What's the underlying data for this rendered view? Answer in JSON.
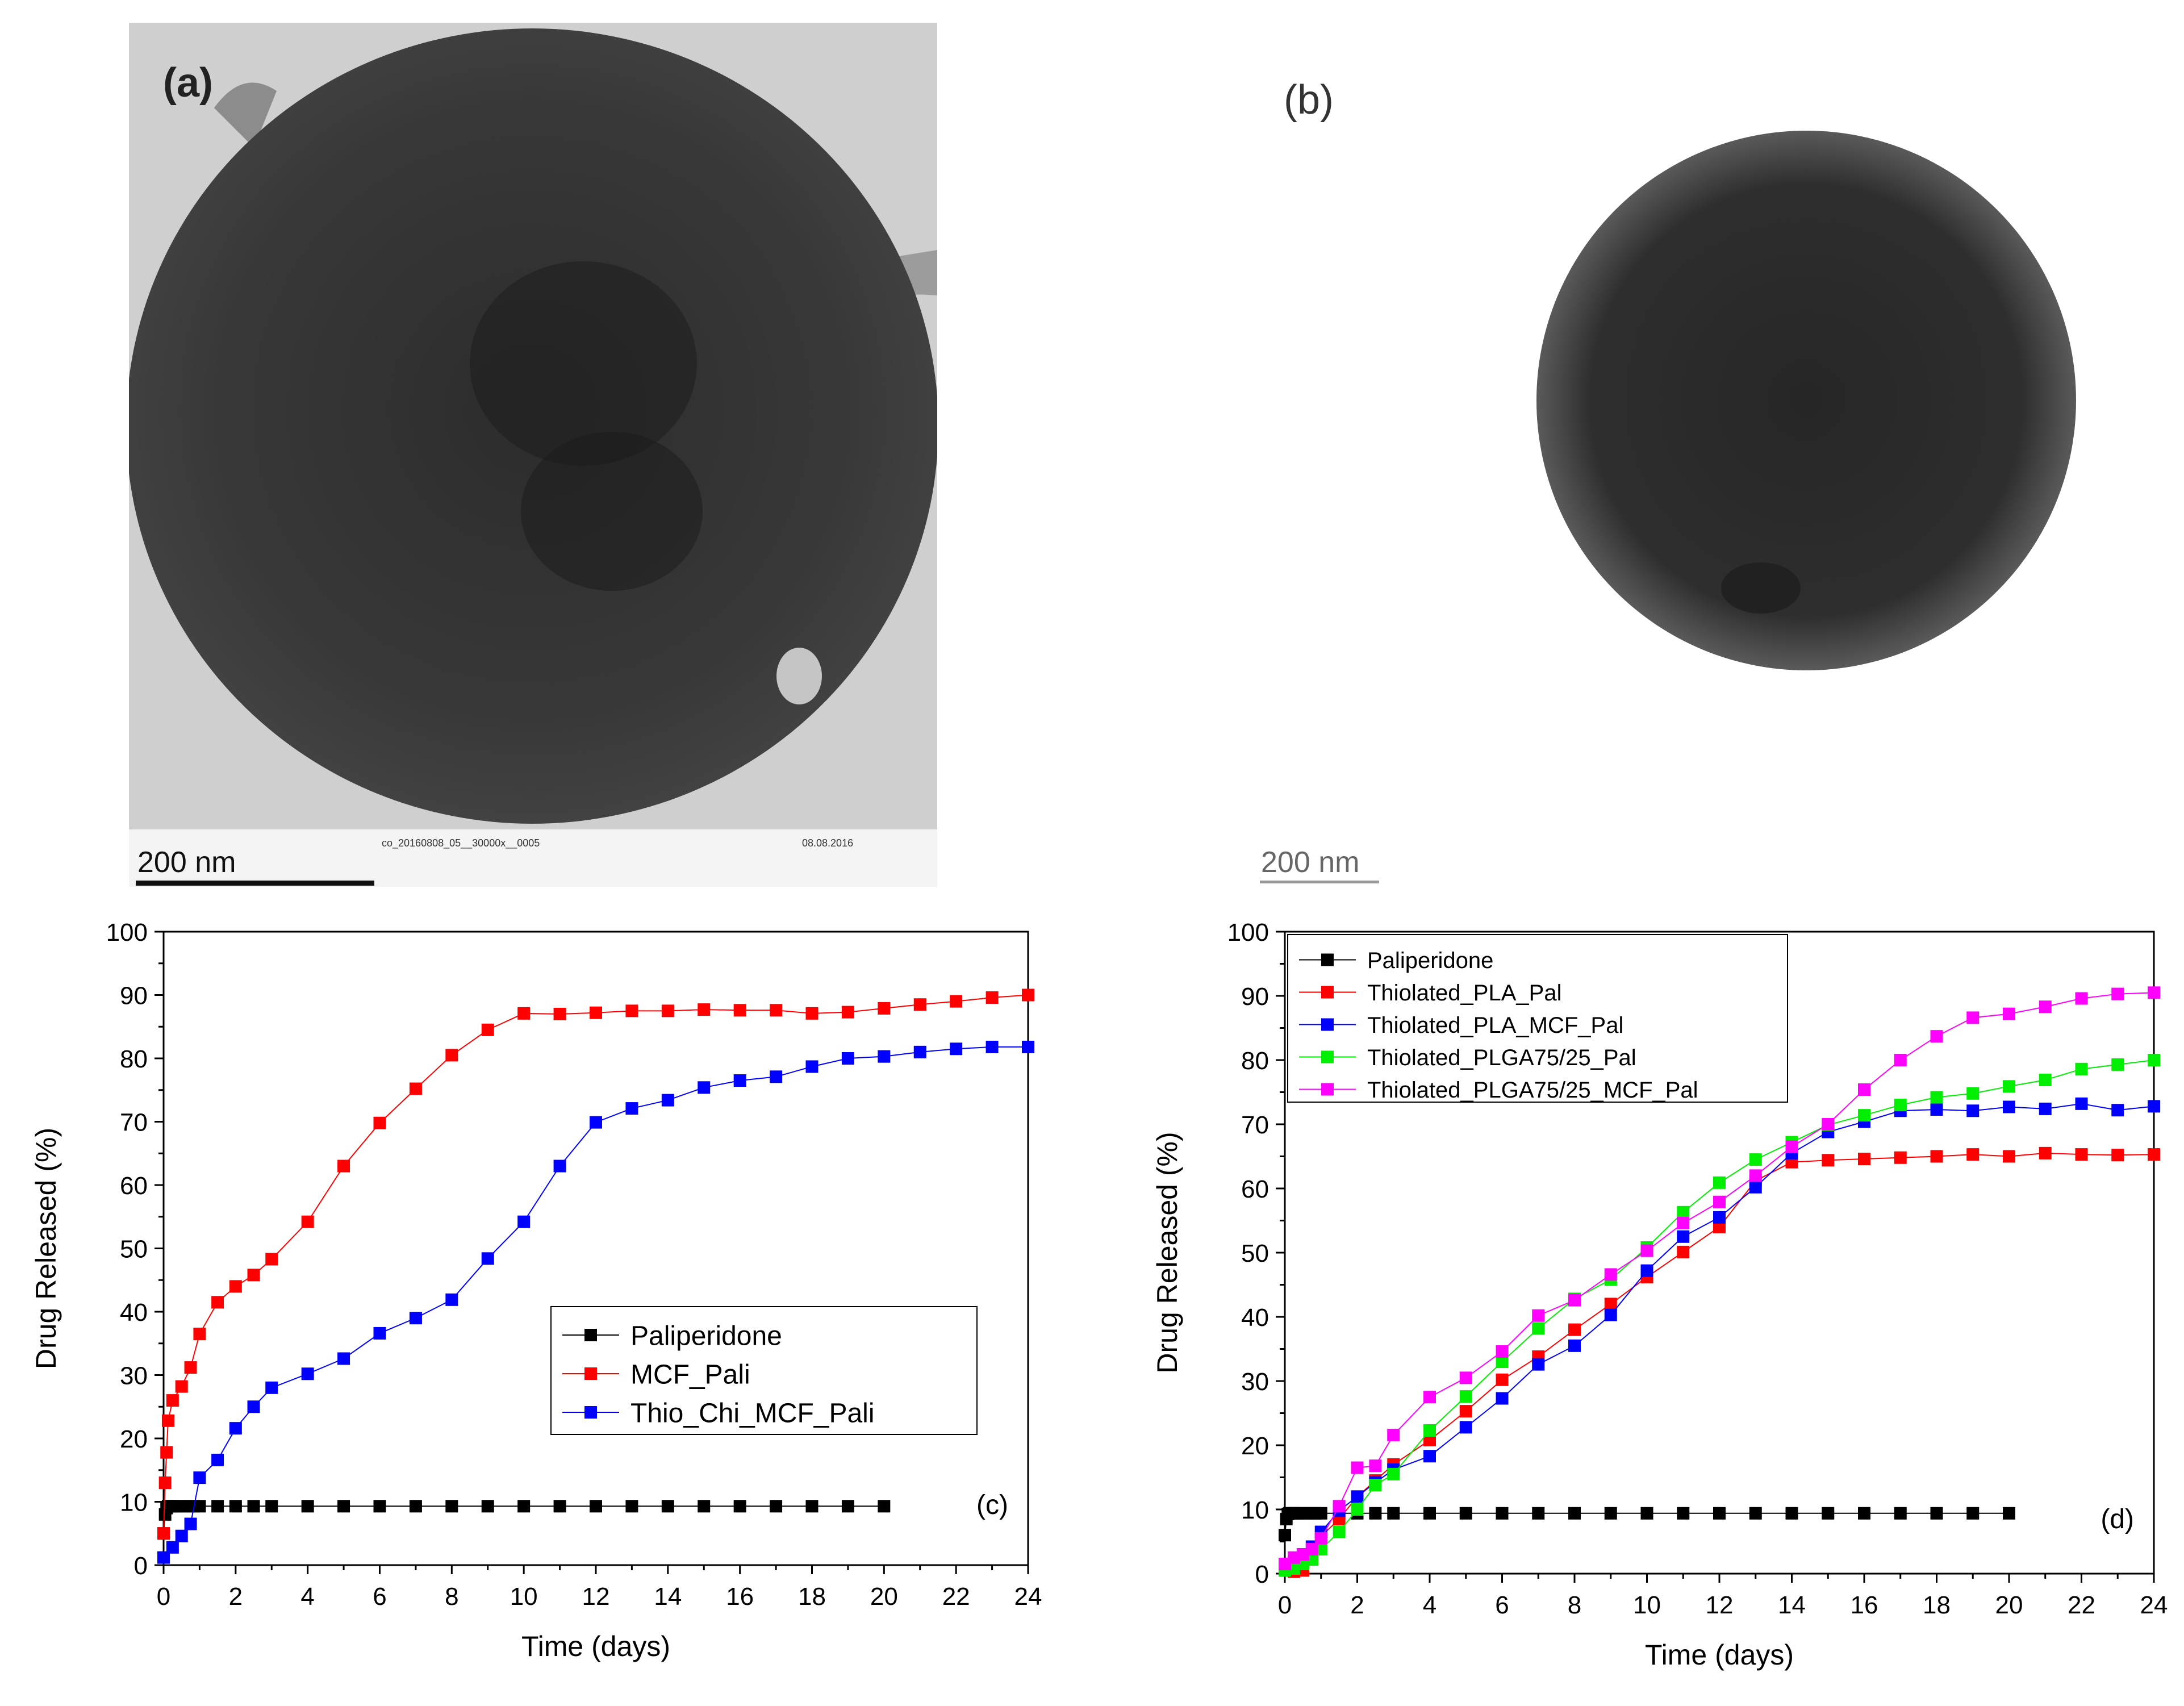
{
  "panels": {
    "a": {
      "label": "(a)",
      "scalebar": "200 nm",
      "footer_id": "co_20160808_05__30000x__0005",
      "footer_date": "08.08.2016"
    },
    "b": {
      "label": "(b)",
      "scalebar": "200 nm"
    }
  },
  "colors": {
    "black": "#000000",
    "red": "#ff0000",
    "blue": "#0000ff",
    "green": "#00ee00",
    "magenta": "#ff00ff"
  },
  "chart_data": [
    {
      "id": "c",
      "type": "line",
      "panel_label": "(c)",
      "xlabel": "Time (days)",
      "ylabel": "Drug Released (%)",
      "xlim": [
        0,
        24
      ],
      "ylim": [
        0,
        100
      ],
      "xticks": [
        0,
        2,
        4,
        6,
        8,
        10,
        12,
        14,
        16,
        18,
        20,
        22,
        24
      ],
      "yticks": [
        0,
        10,
        20,
        30,
        40,
        50,
        60,
        70,
        80,
        90,
        100
      ],
      "legend_position": "center-right",
      "series": [
        {
          "name": "Paliperidone",
          "color": "#000000",
          "x": [
            0,
            0.042,
            0.083,
            0.125,
            0.167,
            0.25,
            0.333,
            0.5,
            0.667,
            0.833,
            1,
            1.5,
            2,
            2.5,
            3,
            4,
            5,
            6,
            7,
            8,
            9,
            10,
            11,
            12,
            13,
            14,
            15,
            16,
            17,
            18,
            19,
            20
          ],
          "y": [
            5.0,
            8.0,
            9.0,
            9.3,
            9.3,
            9.3,
            9.3,
            9.3,
            9.3,
            9.3,
            9.3,
            9.3,
            9.3,
            9.3,
            9.3,
            9.3,
            9.3,
            9.3,
            9.3,
            9.3,
            9.3,
            9.3,
            9.3,
            9.3,
            9.3,
            9.3,
            9.3,
            9.3,
            9.3,
            9.3,
            9.3,
            9.3
          ]
        },
        {
          "name": "MCF_Pali",
          "color": "#ff0000",
          "x": [
            0,
            0.042,
            0.083,
            0.125,
            0.25,
            0.5,
            0.75,
            1,
            1.5,
            2,
            2.5,
            3,
            4,
            5,
            6,
            7,
            8,
            9,
            10,
            11,
            12,
            13,
            14,
            15,
            16,
            17,
            18,
            19,
            20,
            21,
            22,
            23,
            24
          ],
          "y": [
            5.0,
            13.0,
            17.8,
            22.8,
            26.0,
            28.2,
            31.2,
            36.5,
            41.5,
            44.0,
            45.8,
            48.3,
            54.2,
            63.0,
            69.8,
            75.2,
            80.5,
            84.5,
            87.1,
            87.0,
            87.2,
            87.5,
            87.5,
            87.7,
            87.6,
            87.6,
            87.1,
            87.3,
            87.9,
            88.5,
            89.0,
            89.6,
            90.0
          ]
        },
        {
          "name": "Thio_Chi_MCF_Pali",
          "color": "#0000ff",
          "x": [
            0,
            0.25,
            0.5,
            0.75,
            1,
            1.5,
            2,
            2.5,
            3,
            4,
            5,
            6,
            7,
            8,
            9,
            10,
            11,
            12,
            13,
            14,
            15,
            16,
            17,
            18,
            19,
            20,
            21,
            22,
            23,
            24
          ],
          "y": [
            1.2,
            2.8,
            4.6,
            6.5,
            13.8,
            16.6,
            21.6,
            25.0,
            28.0,
            30.2,
            32.6,
            36.6,
            39.0,
            41.9,
            48.4,
            54.2,
            63.0,
            69.9,
            72.1,
            73.4,
            75.4,
            76.5,
            77.1,
            78.7,
            80.0,
            80.3,
            81.0,
            81.5,
            81.8,
            81.8
          ]
        }
      ]
    },
    {
      "id": "d",
      "type": "line",
      "panel_label": "(d)",
      "xlabel": "Time (days)",
      "ylabel": "Drug Released (%)",
      "xlim": [
        0,
        24
      ],
      "ylim": [
        0,
        100
      ],
      "xticks": [
        0,
        2,
        4,
        6,
        8,
        10,
        12,
        14,
        16,
        18,
        20,
        22,
        24
      ],
      "yticks": [
        0,
        10,
        20,
        30,
        40,
        50,
        60,
        70,
        80,
        90,
        100
      ],
      "legend_position": "top-left",
      "series": [
        {
          "name": "Paliperidone",
          "color": "#000000",
          "x": [
            0,
            0.042,
            0.083,
            0.125,
            0.167,
            0.25,
            0.333,
            0.5,
            0.667,
            0.833,
            1,
            1.5,
            2,
            2.5,
            3,
            4,
            5,
            6,
            7,
            8,
            9,
            10,
            11,
            12,
            13,
            14,
            15,
            16,
            17,
            18,
            19,
            20
          ],
          "y": [
            6.0,
            8.5,
            9.3,
            9.4,
            9.4,
            9.4,
            9.4,
            9.4,
            9.4,
            9.4,
            9.4,
            9.4,
            9.4,
            9.4,
            9.4,
            9.4,
            9.4,
            9.4,
            9.4,
            9.4,
            9.4,
            9.4,
            9.4,
            9.4,
            9.4,
            9.4,
            9.4,
            9.4,
            9.4,
            9.4,
            9.4,
            9.4
          ]
        },
        {
          "name": "Thiolated_PLA_Pal",
          "color": "#ff0000",
          "x": [
            0,
            0.25,
            0.5,
            0.75,
            1,
            1.5,
            2,
            2.5,
            3,
            4,
            5,
            6,
            7,
            8,
            9,
            10,
            11,
            12,
            13,
            14,
            15,
            16,
            17,
            18,
            19,
            20,
            21,
            22,
            23,
            24
          ],
          "y": [
            0.5,
            0.3,
            0.5,
            2.3,
            5.8,
            8.5,
            12.0,
            14.5,
            17.0,
            20.8,
            25.3,
            30.2,
            33.8,
            38.0,
            42.0,
            46.2,
            50.1,
            54.0,
            61.2,
            64.1,
            64.4,
            64.6,
            64.8,
            65.0,
            65.3,
            65.0,
            65.5,
            65.3,
            65.2,
            65.3
          ]
        },
        {
          "name": "Thiolated_PLA_MCF_Pal",
          "color": "#0000ff",
          "x": [
            0,
            0.25,
            0.5,
            0.75,
            1,
            1.5,
            2,
            2.5,
            3,
            4,
            5,
            6,
            7,
            8,
            9,
            10,
            11,
            12,
            13,
            14,
            15,
            16,
            17,
            18,
            19,
            20,
            21,
            22,
            23,
            24
          ],
          "y": [
            1.0,
            1.8,
            3.0,
            4.2,
            6.5,
            9.8,
            12.0,
            14.2,
            16.2,
            18.3,
            22.8,
            27.3,
            32.6,
            35.5,
            40.3,
            47.2,
            52.5,
            55.5,
            60.2,
            65.5,
            68.8,
            70.4,
            72.1,
            72.3,
            72.1,
            72.7,
            72.4,
            73.2,
            72.2,
            72.8
          ]
        },
        {
          "name": "Thiolated_PLGA75/25_Pal",
          "color": "#00ee00",
          "x": [
            0,
            0.25,
            0.5,
            0.75,
            1,
            1.5,
            2,
            2.5,
            3,
            4,
            5,
            6,
            7,
            8,
            9,
            10,
            11,
            12,
            13,
            14,
            15,
            16,
            17,
            18,
            19,
            20,
            21,
            22,
            23,
            24
          ],
          "y": [
            0.5,
            0.8,
            1.5,
            2.2,
            3.8,
            6.5,
            10.0,
            13.8,
            15.5,
            22.3,
            27.6,
            33.0,
            38.2,
            42.8,
            45.8,
            50.8,
            56.3,
            60.9,
            64.5,
            67.2,
            69.9,
            71.4,
            73.0,
            74.2,
            74.8,
            75.9,
            76.9,
            78.6,
            79.3,
            80.0
          ]
        },
        {
          "name": "Thiolated_PLGA75/25_MCF_Pal",
          "color": "#ff00ff",
          "x": [
            0,
            0.25,
            0.5,
            0.75,
            1,
            1.5,
            2,
            2.5,
            3,
            4,
            5,
            6,
            7,
            8,
            9,
            10,
            11,
            12,
            13,
            14,
            15,
            16,
            17,
            18,
            19,
            20,
            21,
            22,
            23,
            24
          ],
          "y": [
            1.5,
            2.5,
            3.0,
            3.8,
            5.5,
            10.5,
            16.5,
            16.8,
            21.6,
            27.5,
            30.5,
            34.6,
            40.2,
            42.6,
            46.6,
            50.3,
            54.6,
            57.9,
            62.0,
            66.5,
            70.0,
            75.4,
            80.0,
            83.7,
            86.6,
            87.2,
            88.3,
            89.6,
            90.3,
            90.5
          ]
        }
      ]
    }
  ]
}
